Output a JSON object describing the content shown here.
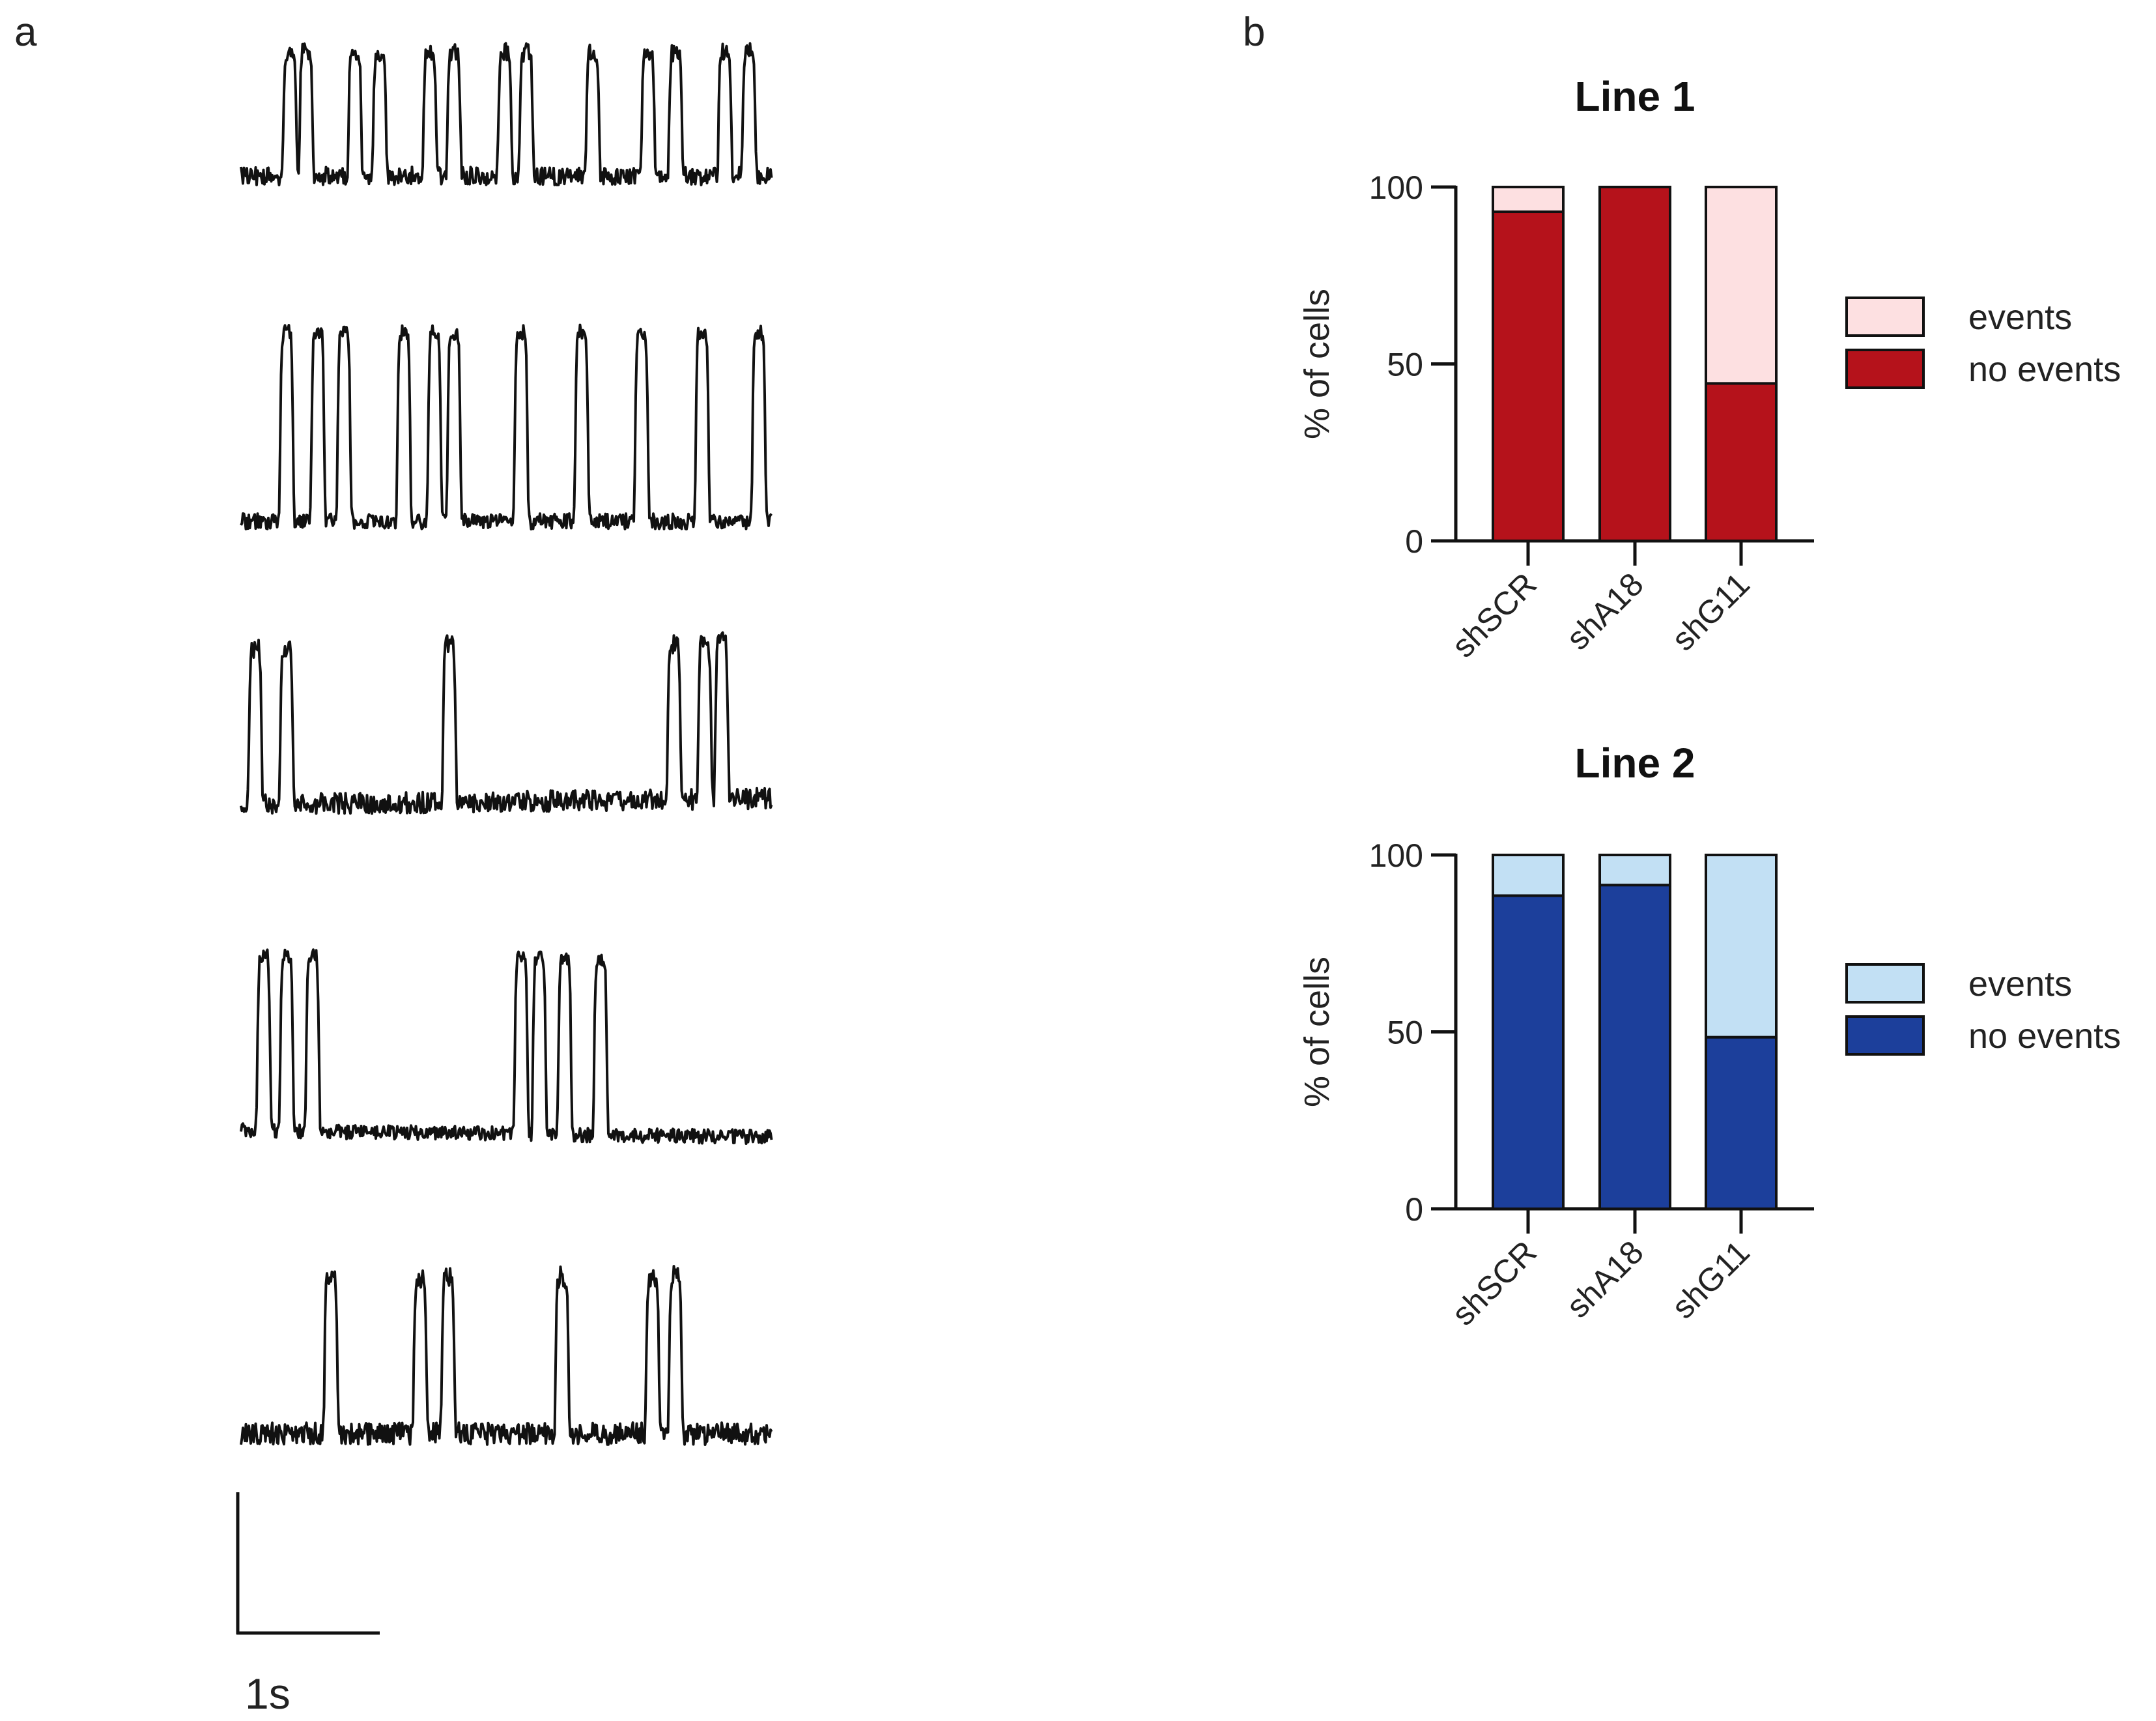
{
  "panel_labels": {
    "a": "a",
    "b": "b"
  },
  "scale_bar": {
    "label": "1s"
  },
  "chart_data": [
    {
      "type": "bar",
      "stacked": true,
      "title": "Line 1",
      "xlabel": "",
      "ylabel": "% of cells",
      "ylim": [
        0,
        100
      ],
      "yticks": [
        "0",
        "50",
        "100"
      ],
      "categories": [
        "shSCR",
        "shA18",
        "shG11"
      ],
      "series": [
        {
          "name": "no events",
          "values": [
            93,
            100,
            44.5
          ],
          "color": "#b5121b"
        },
        {
          "name": "events",
          "values": [
            7,
            0,
            55.5
          ],
          "color": "#fde0e1"
        }
      ],
      "legend": "right"
    },
    {
      "type": "bar",
      "stacked": true,
      "title": "Line 2",
      "xlabel": "",
      "ylabel": "% of cells",
      "ylim": [
        0,
        100
      ],
      "yticks": [
        "0",
        "50",
        "100"
      ],
      "categories": [
        "shSCR",
        "shA18",
        "shG11"
      ],
      "series": [
        {
          "name": "no events",
          "values": [
            88.5,
            91.5,
            48.5
          ],
          "color": "#1c3f9b"
        },
        {
          "name": "events",
          "values": [
            11.5,
            8.5,
            51.5
          ],
          "color": "#c2e0f4"
        }
      ],
      "legend": "right"
    }
  ]
}
